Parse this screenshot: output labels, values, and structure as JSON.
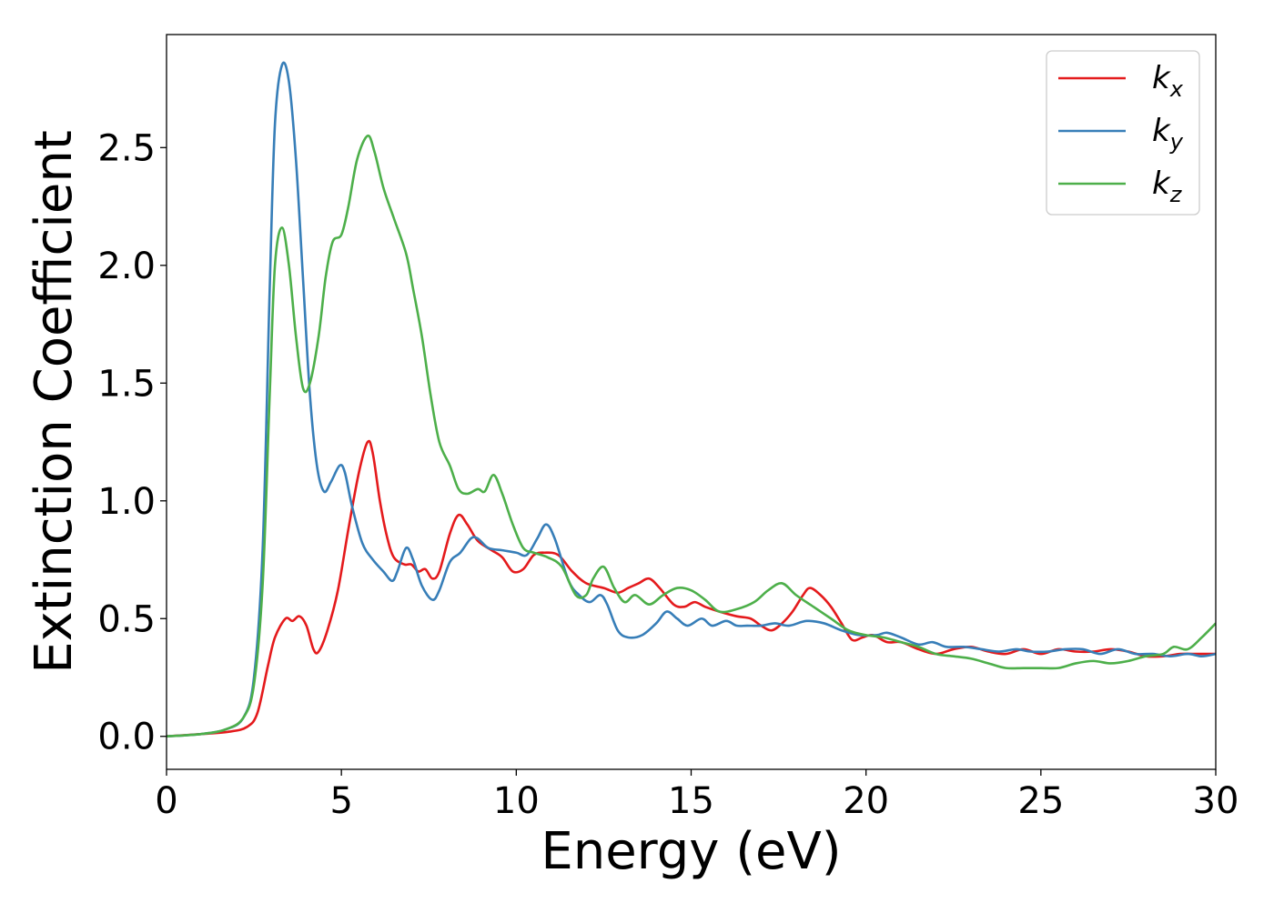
{
  "chart_data": {
    "type": "line",
    "title": "",
    "xlabel": "Energy (eV)",
    "ylabel": "Extinction Coefficient",
    "xlim": [
      0,
      30
    ],
    "ylim": [
      -0.14,
      2.98
    ],
    "x_ticks": [
      0,
      5,
      10,
      15,
      20,
      25,
      30
    ],
    "y_ticks": [
      0.0,
      0.5,
      1.0,
      1.5,
      2.0,
      2.5
    ],
    "x_tick_labels": [
      "0",
      "5",
      "10",
      "15",
      "20",
      "25",
      "30"
    ],
    "y_tick_labels": [
      "0.0",
      "0.5",
      "1.0",
      "1.5",
      "2.0",
      "2.5"
    ],
    "grid": false,
    "legend_position": "top-right",
    "series": [
      {
        "name": "k_x",
        "label_base": "k",
        "label_sub": "x",
        "color": "#e41a1c",
        "points": [
          [
            0,
            0
          ],
          [
            1,
            0.01
          ],
          [
            1.8,
            0.02
          ],
          [
            2.3,
            0.04
          ],
          [
            2.6,
            0.1
          ],
          [
            2.9,
            0.3
          ],
          [
            3.1,
            0.42
          ],
          [
            3.4,
            0.5
          ],
          [
            3.6,
            0.49
          ],
          [
            3.8,
            0.51
          ],
          [
            4.0,
            0.47
          ],
          [
            4.2,
            0.37
          ],
          [
            4.35,
            0.36
          ],
          [
            4.6,
            0.45
          ],
          [
            4.9,
            0.62
          ],
          [
            5.2,
            0.88
          ],
          [
            5.5,
            1.12
          ],
          [
            5.75,
            1.25
          ],
          [
            5.9,
            1.2
          ],
          [
            6.1,
            1.0
          ],
          [
            6.3,
            0.85
          ],
          [
            6.5,
            0.76
          ],
          [
            6.8,
            0.73
          ],
          [
            7.0,
            0.73
          ],
          [
            7.2,
            0.7
          ],
          [
            7.4,
            0.71
          ],
          [
            7.6,
            0.67
          ],
          [
            7.8,
            0.7
          ],
          [
            8.1,
            0.86
          ],
          [
            8.35,
            0.94
          ],
          [
            8.6,
            0.9
          ],
          [
            8.9,
            0.83
          ],
          [
            9.3,
            0.79
          ],
          [
            9.6,
            0.76
          ],
          [
            9.9,
            0.7
          ],
          [
            10.2,
            0.71
          ],
          [
            10.5,
            0.77
          ],
          [
            10.8,
            0.78
          ],
          [
            11.2,
            0.77
          ],
          [
            11.6,
            0.7
          ],
          [
            12.0,
            0.65
          ],
          [
            12.5,
            0.63
          ],
          [
            12.9,
            0.61
          ],
          [
            13.2,
            0.63
          ],
          [
            13.5,
            0.65
          ],
          [
            13.8,
            0.67
          ],
          [
            14.1,
            0.63
          ],
          [
            14.5,
            0.56
          ],
          [
            14.8,
            0.55
          ],
          [
            15.1,
            0.57
          ],
          [
            15.4,
            0.55
          ],
          [
            15.8,
            0.53
          ],
          [
            16.3,
            0.51
          ],
          [
            16.7,
            0.5
          ],
          [
            17.0,
            0.47
          ],
          [
            17.3,
            0.45
          ],
          [
            17.6,
            0.48
          ],
          [
            17.9,
            0.53
          ],
          [
            18.2,
            0.6
          ],
          [
            18.4,
            0.63
          ],
          [
            18.7,
            0.6
          ],
          [
            19.0,
            0.55
          ],
          [
            19.3,
            0.48
          ],
          [
            19.6,
            0.41
          ],
          [
            19.9,
            0.42
          ],
          [
            20.2,
            0.43
          ],
          [
            20.6,
            0.4
          ],
          [
            21.0,
            0.4
          ],
          [
            21.5,
            0.37
          ],
          [
            22.0,
            0.35
          ],
          [
            22.5,
            0.37
          ],
          [
            23.0,
            0.38
          ],
          [
            23.5,
            0.36
          ],
          [
            24.0,
            0.35
          ],
          [
            24.5,
            0.37
          ],
          [
            25.0,
            0.35
          ],
          [
            25.5,
            0.37
          ],
          [
            26.0,
            0.36
          ],
          [
            26.5,
            0.36
          ],
          [
            27.0,
            0.37
          ],
          [
            27.5,
            0.36
          ],
          [
            28.0,
            0.34
          ],
          [
            28.5,
            0.34
          ],
          [
            29.0,
            0.35
          ],
          [
            29.5,
            0.35
          ],
          [
            30.0,
            0.35
          ]
        ]
      },
      {
        "name": "k_y",
        "label_base": "k",
        "label_sub": "y",
        "color": "#377eb8",
        "points": [
          [
            0,
            0
          ],
          [
            1,
            0.01
          ],
          [
            1.7,
            0.03
          ],
          [
            2.2,
            0.08
          ],
          [
            2.5,
            0.25
          ],
          [
            2.75,
            0.8
          ],
          [
            2.95,
            1.9
          ],
          [
            3.1,
            2.6
          ],
          [
            3.3,
            2.85
          ],
          [
            3.5,
            2.78
          ],
          [
            3.7,
            2.45
          ],
          [
            3.9,
            1.95
          ],
          [
            4.1,
            1.45
          ],
          [
            4.3,
            1.15
          ],
          [
            4.5,
            1.04
          ],
          [
            4.7,
            1.08
          ],
          [
            4.95,
            1.15
          ],
          [
            5.1,
            1.12
          ],
          [
            5.3,
            0.98
          ],
          [
            5.6,
            0.82
          ],
          [
            5.9,
            0.75
          ],
          [
            6.2,
            0.7
          ],
          [
            6.45,
            0.66
          ],
          [
            6.6,
            0.7
          ],
          [
            6.85,
            0.8
          ],
          [
            7.05,
            0.75
          ],
          [
            7.3,
            0.64
          ],
          [
            7.6,
            0.58
          ],
          [
            7.8,
            0.62
          ],
          [
            8.1,
            0.74
          ],
          [
            8.4,
            0.78
          ],
          [
            8.7,
            0.84
          ],
          [
            8.9,
            0.84
          ],
          [
            9.2,
            0.8
          ],
          [
            9.6,
            0.79
          ],
          [
            10.0,
            0.78
          ],
          [
            10.3,
            0.77
          ],
          [
            10.6,
            0.84
          ],
          [
            10.85,
            0.9
          ],
          [
            11.1,
            0.84
          ],
          [
            11.5,
            0.66
          ],
          [
            11.8,
            0.6
          ],
          [
            12.1,
            0.57
          ],
          [
            12.4,
            0.6
          ],
          [
            12.6,
            0.56
          ],
          [
            12.9,
            0.45
          ],
          [
            13.2,
            0.42
          ],
          [
            13.6,
            0.43
          ],
          [
            14.0,
            0.48
          ],
          [
            14.3,
            0.53
          ],
          [
            14.6,
            0.5
          ],
          [
            14.9,
            0.47
          ],
          [
            15.3,
            0.5
          ],
          [
            15.6,
            0.47
          ],
          [
            16.0,
            0.49
          ],
          [
            16.3,
            0.47
          ],
          [
            16.6,
            0.47
          ],
          [
            17.0,
            0.47
          ],
          [
            17.4,
            0.48
          ],
          [
            17.8,
            0.47
          ],
          [
            18.3,
            0.49
          ],
          [
            18.8,
            0.48
          ],
          [
            19.3,
            0.45
          ],
          [
            19.8,
            0.43
          ],
          [
            20.3,
            0.43
          ],
          [
            20.6,
            0.44
          ],
          [
            21.0,
            0.42
          ],
          [
            21.5,
            0.39
          ],
          [
            21.9,
            0.4
          ],
          [
            22.3,
            0.38
          ],
          [
            22.8,
            0.38
          ],
          [
            23.3,
            0.37
          ],
          [
            23.8,
            0.36
          ],
          [
            24.3,
            0.37
          ],
          [
            24.7,
            0.36
          ],
          [
            25.2,
            0.36
          ],
          [
            25.7,
            0.37
          ],
          [
            26.2,
            0.37
          ],
          [
            26.7,
            0.35
          ],
          [
            27.2,
            0.37
          ],
          [
            27.7,
            0.35
          ],
          [
            28.2,
            0.35
          ],
          [
            28.7,
            0.34
          ],
          [
            29.2,
            0.35
          ],
          [
            29.6,
            0.34
          ],
          [
            30.0,
            0.35
          ]
        ]
      },
      {
        "name": "k_z",
        "label_base": "k",
        "label_sub": "z",
        "color": "#4daf4a",
        "points": [
          [
            0,
            0
          ],
          [
            1,
            0.01
          ],
          [
            1.7,
            0.03
          ],
          [
            2.2,
            0.08
          ],
          [
            2.5,
            0.22
          ],
          [
            2.75,
            0.65
          ],
          [
            2.95,
            1.45
          ],
          [
            3.1,
            2.0
          ],
          [
            3.3,
            2.16
          ],
          [
            3.5,
            2.0
          ],
          [
            3.7,
            1.7
          ],
          [
            3.9,
            1.48
          ],
          [
            4.1,
            1.5
          ],
          [
            4.35,
            1.7
          ],
          [
            4.55,
            1.95
          ],
          [
            4.75,
            2.1
          ],
          [
            5.0,
            2.13
          ],
          [
            5.2,
            2.25
          ],
          [
            5.45,
            2.45
          ],
          [
            5.75,
            2.55
          ],
          [
            5.95,
            2.48
          ],
          [
            6.2,
            2.33
          ],
          [
            6.5,
            2.2
          ],
          [
            6.85,
            2.05
          ],
          [
            7.05,
            1.9
          ],
          [
            7.3,
            1.7
          ],
          [
            7.55,
            1.45
          ],
          [
            7.8,
            1.25
          ],
          [
            8.1,
            1.15
          ],
          [
            8.35,
            1.05
          ],
          [
            8.6,
            1.03
          ],
          [
            8.9,
            1.05
          ],
          [
            9.1,
            1.04
          ],
          [
            9.35,
            1.11
          ],
          [
            9.6,
            1.03
          ],
          [
            9.9,
            0.9
          ],
          [
            10.2,
            0.8
          ],
          [
            10.5,
            0.78
          ],
          [
            10.9,
            0.76
          ],
          [
            11.3,
            0.72
          ],
          [
            11.7,
            0.6
          ],
          [
            12.0,
            0.6
          ],
          [
            12.2,
            0.67
          ],
          [
            12.5,
            0.72
          ],
          [
            12.8,
            0.63
          ],
          [
            13.1,
            0.57
          ],
          [
            13.4,
            0.6
          ],
          [
            13.8,
            0.56
          ],
          [
            14.2,
            0.6
          ],
          [
            14.6,
            0.63
          ],
          [
            15.0,
            0.62
          ],
          [
            15.4,
            0.58
          ],
          [
            15.8,
            0.53
          ],
          [
            16.3,
            0.54
          ],
          [
            16.8,
            0.57
          ],
          [
            17.2,
            0.62
          ],
          [
            17.6,
            0.65
          ],
          [
            18.0,
            0.6
          ],
          [
            18.5,
            0.55
          ],
          [
            19.0,
            0.5
          ],
          [
            19.5,
            0.45
          ],
          [
            20.0,
            0.43
          ],
          [
            20.5,
            0.42
          ],
          [
            21.0,
            0.4
          ],
          [
            21.5,
            0.38
          ],
          [
            22.0,
            0.35
          ],
          [
            22.5,
            0.34
          ],
          [
            23.0,
            0.33
          ],
          [
            23.5,
            0.31
          ],
          [
            24.0,
            0.29
          ],
          [
            24.5,
            0.29
          ],
          [
            25.0,
            0.29
          ],
          [
            25.5,
            0.29
          ],
          [
            26.0,
            0.31
          ],
          [
            26.5,
            0.32
          ],
          [
            27.0,
            0.31
          ],
          [
            27.5,
            0.32
          ],
          [
            28.0,
            0.34
          ],
          [
            28.5,
            0.35
          ],
          [
            28.8,
            0.38
          ],
          [
            29.2,
            0.37
          ],
          [
            29.6,
            0.42
          ],
          [
            30.0,
            0.48
          ]
        ]
      }
    ]
  }
}
